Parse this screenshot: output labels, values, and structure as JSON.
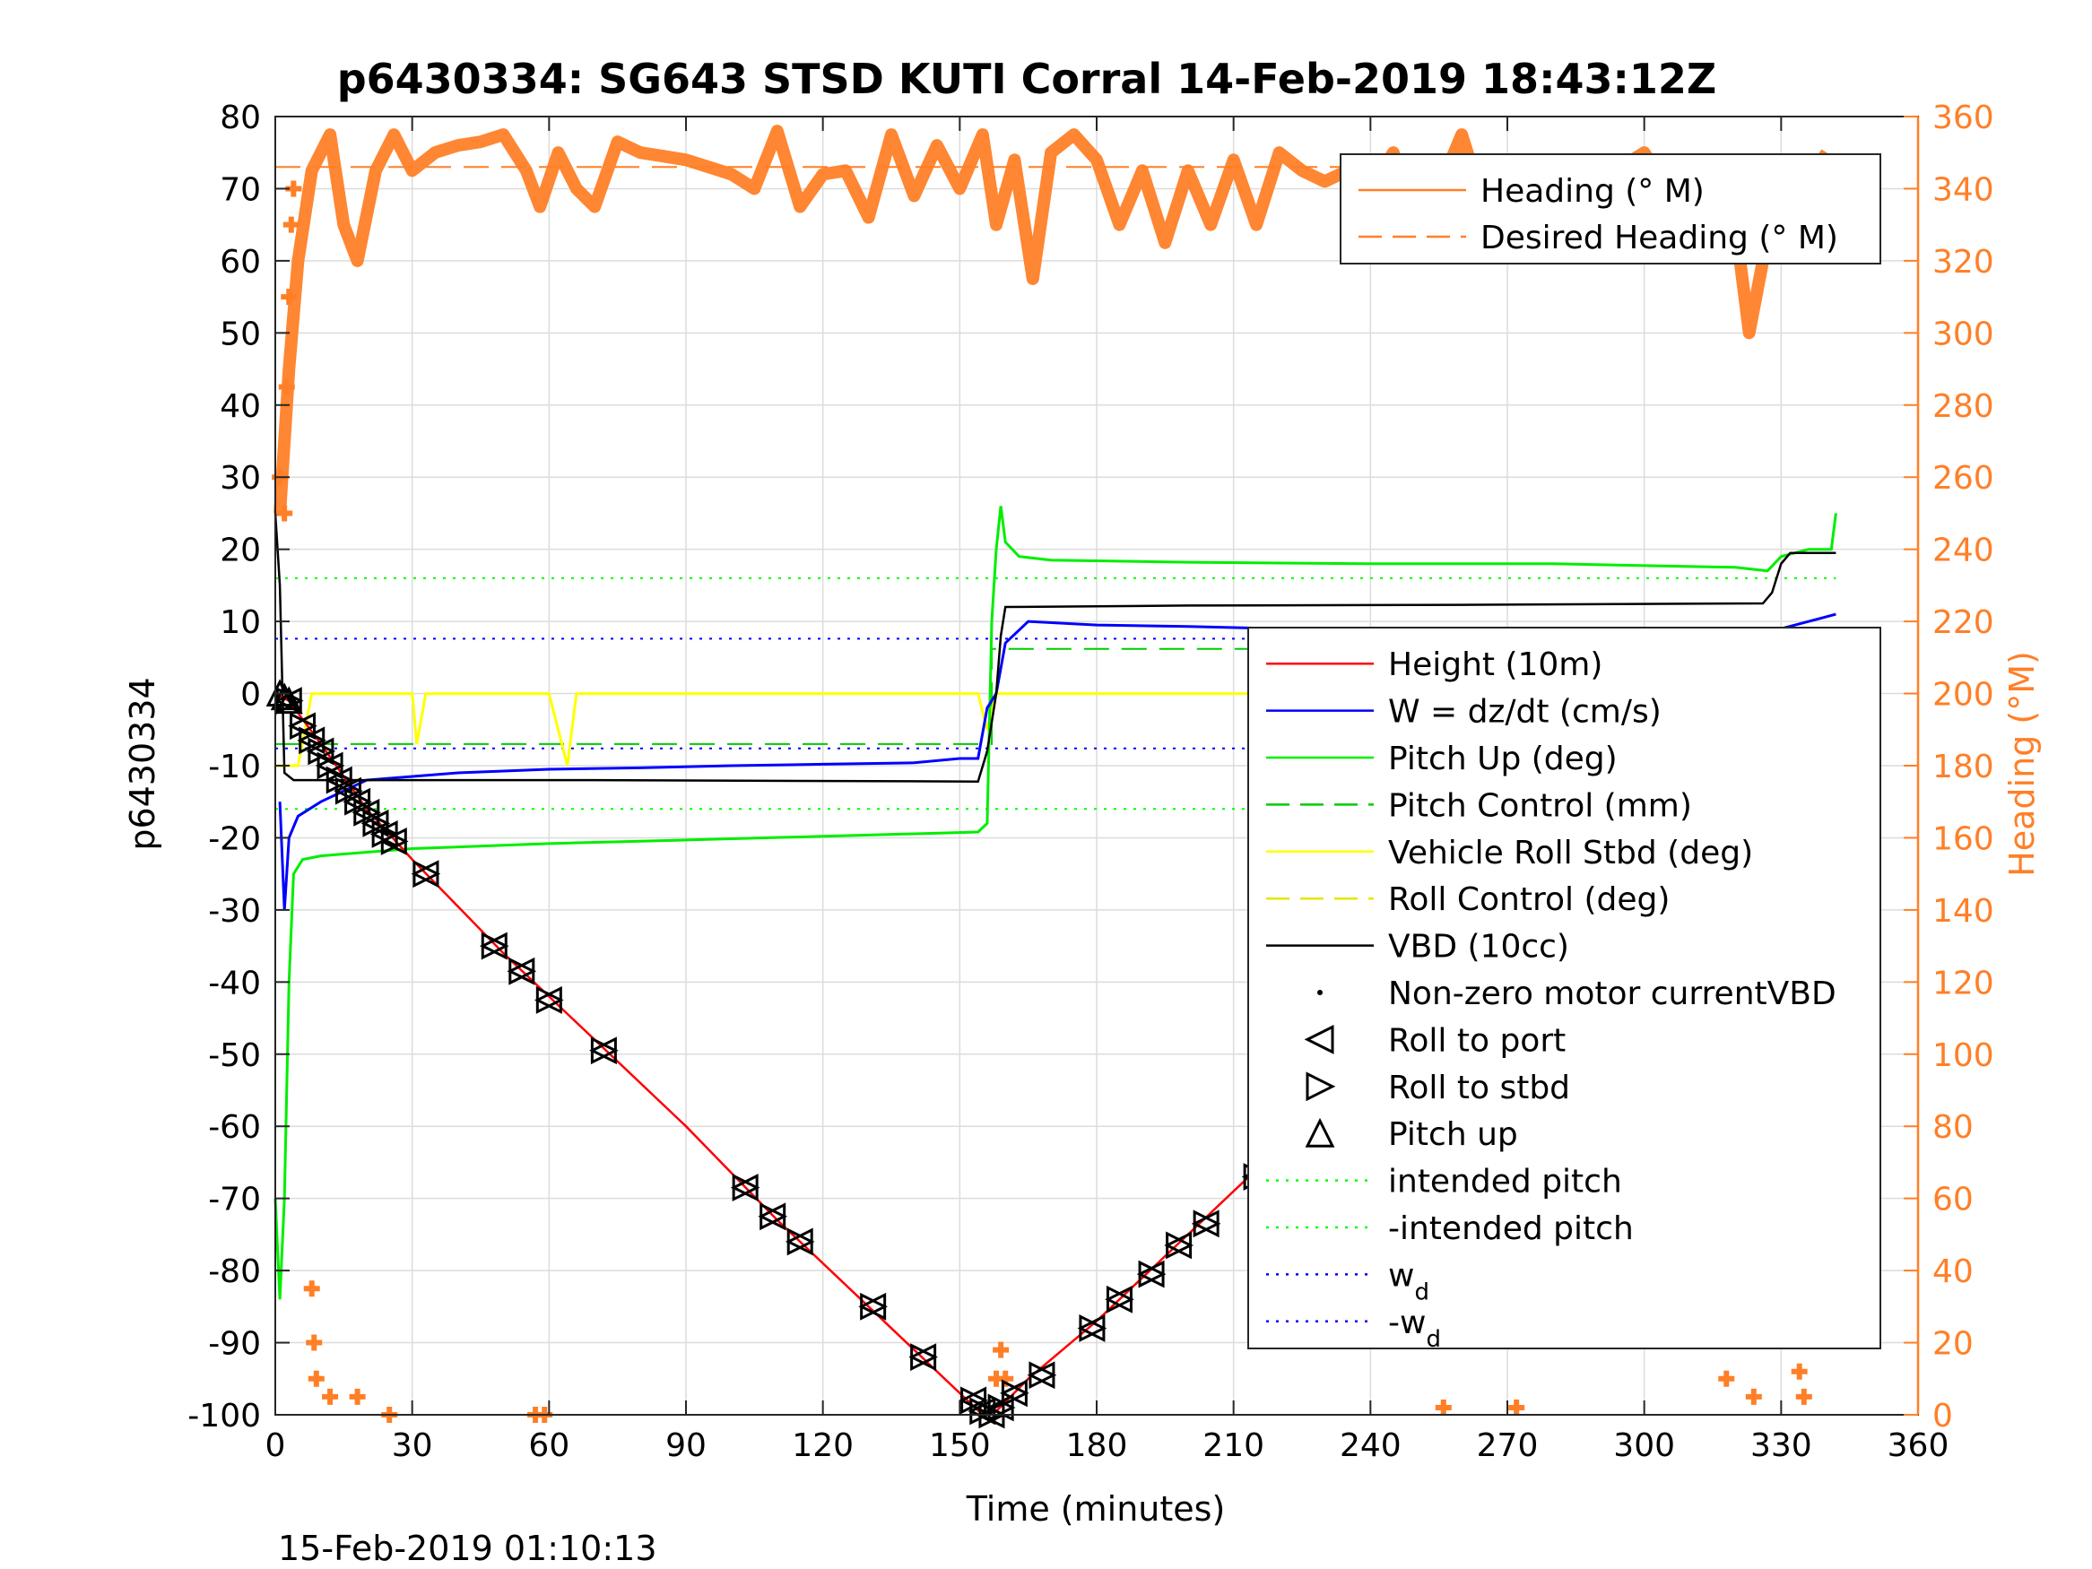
{
  "chart_data": {
    "type": "line",
    "title": "p6430334: SG643 STSD KUTI Corral 14-Feb-2019 18:43:12Z",
    "xlabel": "Time (minutes)",
    "ylabel": "p6430334",
    "y2label": "Heading (°M)",
    "footer": "15-Feb-2019 01:10:13",
    "xlim": [
      0,
      360
    ],
    "ylim": [
      -100,
      80
    ],
    "y2lim": [
      0,
      360
    ],
    "xticks": [
      0,
      30,
      60,
      90,
      120,
      150,
      180,
      210,
      240,
      270,
      300,
      330,
      360
    ],
    "yticks": [
      -100,
      -90,
      -80,
      -70,
      -60,
      -50,
      -40,
      -30,
      -20,
      -10,
      0,
      10,
      20,
      30,
      40,
      50,
      60,
      70,
      80
    ],
    "y2ticks": [
      0,
      20,
      40,
      60,
      80,
      100,
      120,
      140,
      160,
      180,
      200,
      220,
      240,
      260,
      280,
      300,
      320,
      340,
      360
    ],
    "grid": true,
    "colors": {
      "height": "#ff0000",
      "w": "#0000ff",
      "pitch": "#00ee00",
      "pitch_control": "#00cc00",
      "roll": "#ffff00",
      "roll_control": "#e6e600",
      "vbd": "#000000",
      "heading": "#ff7f27",
      "intended_pitch": "#00ff00",
      "wd": "#0000ff"
    },
    "legend_heading": [
      {
        "label": "Heading (° M)",
        "style": "solid",
        "color": "#ff7f27"
      },
      {
        "label": "Desired Heading (° M)",
        "style": "dashed",
        "color": "#ff7f27"
      }
    ],
    "legend_main": [
      {
        "label": "Height (10m)",
        "style": "solid",
        "color": "#ff0000"
      },
      {
        "label": "W = dz/dt (cm/s)",
        "style": "solid",
        "color": "#0000ff"
      },
      {
        "label": "Pitch Up (deg)",
        "style": "solid",
        "color": "#00ee00"
      },
      {
        "label": "Pitch Control (mm)",
        "style": "dashed",
        "color": "#00cc00"
      },
      {
        "label": "Vehicle Roll Stbd (deg)",
        "style": "solid",
        "color": "#ffff00"
      },
      {
        "label": "Roll Control (deg)",
        "style": "dashed",
        "color": "#e6e600"
      },
      {
        "label": "VBD (10cc)",
        "style": "solid",
        "color": "#000000"
      },
      {
        "label": "Non-zero motor currentVBD",
        "style": "dot",
        "color": "#000000"
      },
      {
        "label": "Roll to port",
        "style": "tri-left",
        "color": "#000000"
      },
      {
        "label": "Roll to stbd",
        "style": "tri-right",
        "color": "#000000"
      },
      {
        "label": "Pitch up",
        "style": "tri-up",
        "color": "#000000"
      },
      {
        "label": "intended pitch",
        "style": "dotted",
        "color": "#00ff00"
      },
      {
        "label": "-intended pitch",
        "style": "dotted",
        "color": "#00ff00"
      },
      {
        "label": "w",
        "sub": "d",
        "style": "dotted",
        "color": "#0000ff"
      },
      {
        "label": "-w",
        "sub": "d",
        "style": "dotted",
        "color": "#0000ff"
      }
    ],
    "reference_lines": {
      "intended_pitch": 16,
      "neg_intended_pitch": -16,
      "wd": 7.6,
      "neg_wd": -7.6,
      "pitch_control": [
        [
          0,
          -7
        ],
        [
          157,
          -7
        ],
        [
          157,
          6.2
        ],
        [
          342,
          6.2
        ]
      ],
      "desired_heading": 346
    },
    "series": {
      "height": [
        [
          0,
          0
        ],
        [
          3,
          -1
        ],
        [
          10,
          -7
        ],
        [
          20,
          -16
        ],
        [
          30,
          -23
        ],
        [
          50,
          -36
        ],
        [
          70,
          -48
        ],
        [
          90,
          -60
        ],
        [
          110,
          -73
        ],
        [
          130,
          -85
        ],
        [
          145,
          -94
        ],
        [
          155,
          -100
        ],
        [
          158,
          -99.5
        ],
        [
          165,
          -95
        ],
        [
          180,
          -87
        ],
        [
          200,
          -75
        ],
        [
          220,
          -63
        ],
        [
          240,
          -52
        ],
        [
          260,
          -42
        ],
        [
          280,
          -31
        ],
        [
          300,
          -20
        ],
        [
          320,
          -10
        ],
        [
          338,
          -2
        ]
      ],
      "vbd": [
        [
          0,
          25
        ],
        [
          1,
          15
        ],
        [
          2,
          -11
        ],
        [
          4,
          -12
        ],
        [
          70,
          -12
        ],
        [
          154,
          -12.2
        ],
        [
          156,
          -8
        ],
        [
          158,
          0
        ],
        [
          159,
          8
        ],
        [
          160,
          12
        ],
        [
          200,
          12.2
        ],
        [
          260,
          12.3
        ],
        [
          326,
          12.5
        ],
        [
          328,
          14
        ],
        [
          330,
          18
        ],
        [
          332,
          19.5
        ],
        [
          342,
          19.5
        ]
      ],
      "pitch": [
        [
          0,
          -70
        ],
        [
          1,
          -84
        ],
        [
          2,
          -70
        ],
        [
          3,
          -40
        ],
        [
          4,
          -25
        ],
        [
          6,
          -23
        ],
        [
          10,
          -22.5
        ],
        [
          30,
          -21.5
        ],
        [
          60,
          -20.8
        ],
        [
          90,
          -20.3
        ],
        [
          120,
          -19.8
        ],
        [
          154,
          -19.2
        ],
        [
          156,
          -18
        ],
        [
          157,
          10
        ],
        [
          158,
          20
        ],
        [
          159,
          26
        ],
        [
          160,
          21
        ],
        [
          163,
          19
        ],
        [
          170,
          18.5
        ],
        [
          200,
          18.2
        ],
        [
          240,
          18
        ],
        [
          280,
          18
        ],
        [
          320,
          17.5
        ],
        [
          327,
          17
        ],
        [
          330,
          19
        ],
        [
          336,
          20
        ],
        [
          341,
          20
        ],
        [
          342,
          25
        ]
      ],
      "w": [
        [
          1,
          -15
        ],
        [
          2,
          -30
        ],
        [
          3,
          -20
        ],
        [
          5,
          -17
        ],
        [
          10,
          -15
        ],
        [
          20,
          -12
        ],
        [
          40,
          -11
        ],
        [
          60,
          -10.5
        ],
        [
          80,
          -10.3
        ],
        [
          100,
          -10
        ],
        [
          120,
          -9.8
        ],
        [
          140,
          -9.6
        ],
        [
          150,
          -9
        ],
        [
          154,
          -9
        ],
        [
          156,
          -2
        ],
        [
          158,
          0
        ],
        [
          160,
          7
        ],
        [
          165,
          10
        ],
        [
          180,
          9.5
        ],
        [
          200,
          9.3
        ],
        [
          220,
          9
        ],
        [
          240,
          8.8
        ],
        [
          260,
          8.7
        ],
        [
          280,
          8.7
        ],
        [
          300,
          8.6
        ],
        [
          320,
          8.5
        ],
        [
          330,
          9
        ],
        [
          342,
          11
        ]
      ],
      "roll": [
        [
          0,
          -10
        ],
        [
          5,
          -10
        ],
        [
          8,
          0
        ],
        [
          20,
          0
        ],
        [
          30,
          0
        ],
        [
          31,
          -7
        ],
        [
          33,
          0
        ],
        [
          60,
          0
        ],
        [
          64,
          -10
        ],
        [
          66,
          0
        ],
        [
          90,
          0
        ],
        [
          110,
          0
        ],
        [
          130,
          0
        ],
        [
          154,
          0
        ],
        [
          156,
          -5
        ],
        [
          158,
          0
        ],
        [
          200,
          0
        ],
        [
          240,
          0
        ],
        [
          280,
          0
        ],
        [
          320,
          0
        ],
        [
          340,
          0
        ],
        [
          342,
          2
        ]
      ],
      "heading": [
        [
          1,
          250
        ],
        [
          3,
          290
        ],
        [
          5,
          320
        ],
        [
          8,
          345
        ],
        [
          12,
          355
        ],
        [
          15,
          330
        ],
        [
          18,
          320
        ],
        [
          22,
          345
        ],
        [
          26,
          355
        ],
        [
          30,
          345
        ],
        [
          35,
          350
        ],
        [
          40,
          352
        ],
        [
          45,
          353
        ],
        [
          50,
          355
        ],
        [
          55,
          345
        ],
        [
          58,
          335
        ],
        [
          62,
          350
        ],
        [
          66,
          340
        ],
        [
          70,
          335
        ],
        [
          75,
          353
        ],
        [
          80,
          350
        ],
        [
          85,
          349
        ],
        [
          90,
          348
        ],
        [
          95,
          346
        ],
        [
          100,
          344
        ],
        [
          105,
          340
        ],
        [
          110,
          356
        ],
        [
          115,
          335
        ],
        [
          120,
          344
        ],
        [
          125,
          345
        ],
        [
          130,
          332
        ],
        [
          135,
          355
        ],
        [
          140,
          338
        ],
        [
          145,
          352
        ],
        [
          150,
          340
        ],
        [
          155,
          355
        ],
        [
          158,
          330
        ],
        [
          162,
          348
        ],
        [
          166,
          315
        ],
        [
          170,
          350
        ],
        [
          175,
          355
        ],
        [
          180,
          348
        ],
        [
          185,
          330
        ],
        [
          190,
          345
        ],
        [
          195,
          325
        ],
        [
          200,
          345
        ],
        [
          205,
          330
        ],
        [
          210,
          348
        ],
        [
          215,
          330
        ],
        [
          220,
          350
        ],
        [
          225,
          345
        ],
        [
          230,
          342
        ],
        [
          235,
          345
        ],
        [
          240,
          340
        ],
        [
          245,
          350
        ],
        [
          250,
          330
        ],
        [
          255,
          340
        ],
        [
          260,
          355
        ],
        [
          265,
          335
        ],
        [
          270,
          345
        ],
        [
          275,
          340
        ],
        [
          280,
          348
        ],
        [
          285,
          344
        ],
        [
          290,
          340
        ],
        [
          295,
          346
        ],
        [
          300,
          350
        ],
        [
          305,
          340
        ],
        [
          310,
          330
        ],
        [
          315,
          340
        ],
        [
          320,
          330
        ],
        [
          323,
          300
        ],
        [
          326,
          320
        ],
        [
          330,
          345
        ],
        [
          335,
          340
        ],
        [
          340,
          350
        ]
      ],
      "heading_bursts": [
        [
          1,
          260
        ],
        [
          2,
          250
        ],
        [
          2.5,
          285
        ],
        [
          3,
          310
        ],
        [
          3.5,
          330
        ],
        [
          4,
          340
        ],
        [
          8,
          35
        ],
        [
          8.5,
          20
        ],
        [
          9,
          10
        ],
        [
          12,
          5
        ],
        [
          18,
          5
        ],
        [
          25,
          0
        ],
        [
          57,
          0
        ],
        [
          59,
          0
        ],
        [
          158,
          10
        ],
        [
          159,
          18
        ],
        [
          160,
          10
        ],
        [
          256,
          2
        ],
        [
          272,
          2
        ],
        [
          318,
          10
        ],
        [
          324,
          5
        ],
        [
          334,
          12
        ],
        [
          335,
          5
        ]
      ]
    },
    "markers": {
      "roll_to_port": [
        [
          3,
          -1
        ],
        [
          6,
          -4.5
        ],
        [
          8,
          -6.5
        ],
        [
          10,
          -8
        ],
        [
          12,
          -10
        ],
        [
          14,
          -12
        ],
        [
          16,
          -13.5
        ],
        [
          18,
          -15
        ],
        [
          20,
          -16.5
        ],
        [
          22,
          -18
        ],
        [
          24,
          -19.5
        ],
        [
          26,
          -20.5
        ],
        [
          33,
          -25
        ],
        [
          48,
          -35
        ],
        [
          54,
          -38.5
        ],
        [
          60,
          -42.5
        ],
        [
          72,
          -49.5
        ],
        [
          103,
          -68.5
        ],
        [
          109,
          -72.5
        ],
        [
          115,
          -76
        ],
        [
          131,
          -85
        ],
        [
          142,
          -92
        ],
        [
          153,
          -98
        ],
        [
          155,
          -99.5
        ],
        [
          157,
          -100
        ],
        [
          159,
          -99
        ],
        [
          162,
          -97
        ],
        [
          168,
          -94.5
        ],
        [
          179,
          -88
        ],
        [
          185,
          -84
        ],
        [
          192,
          -80.5
        ],
        [
          198,
          -76.5
        ],
        [
          204,
          -73.5
        ],
        [
          215,
          -67
        ],
        [
          221,
          -64
        ],
        [
          242,
          -52.5
        ],
        [
          258,
          -44
        ],
        [
          274,
          -35.5
        ],
        [
          280,
          -32.5
        ],
        [
          301,
          -21
        ],
        [
          311,
          -15.5
        ],
        [
          318,
          -12
        ],
        [
          322,
          -9.5
        ],
        [
          326,
          -8
        ],
        [
          328,
          -7
        ],
        [
          330,
          -6
        ],
        [
          332,
          -5
        ],
        [
          334,
          -4
        ],
        [
          336,
          -3
        ],
        [
          338,
          -2.5
        ]
      ],
      "roll_to_stbd": [
        [
          3,
          -1
        ],
        [
          6,
          -4.5
        ],
        [
          8,
          -6.5
        ],
        [
          10,
          -8
        ],
        [
          12,
          -10
        ],
        [
          14,
          -12
        ],
        [
          16,
          -13.5
        ],
        [
          18,
          -15
        ],
        [
          20,
          -16.5
        ],
        [
          22,
          -18
        ],
        [
          24,
          -19.5
        ],
        [
          26,
          -20.5
        ],
        [
          33,
          -25
        ],
        [
          48,
          -35
        ],
        [
          54,
          -38.5
        ],
        [
          60,
          -42.5
        ],
        [
          72,
          -49.5
        ],
        [
          103,
          -68.5
        ],
        [
          109,
          -72.5
        ],
        [
          115,
          -76
        ],
        [
          131,
          -85
        ],
        [
          142,
          -92
        ],
        [
          153,
          -98
        ],
        [
          155,
          -99.5
        ],
        [
          157,
          -100
        ],
        [
          159,
          -99
        ],
        [
          162,
          -97
        ],
        [
          168,
          -94.5
        ],
        [
          179,
          -88
        ],
        [
          185,
          -84
        ],
        [
          192,
          -80.5
        ],
        [
          198,
          -76.5
        ],
        [
          204,
          -73.5
        ],
        [
          215,
          -67
        ],
        [
          221,
          -64
        ],
        [
          242,
          -52.5
        ],
        [
          258,
          -44
        ],
        [
          274,
          -35.5
        ],
        [
          280,
          -32.5
        ],
        [
          301,
          -21
        ],
        [
          311,
          -15.5
        ],
        [
          318,
          -12
        ],
        [
          322,
          -9.5
        ],
        [
          326,
          -8
        ],
        [
          328,
          -7
        ],
        [
          330,
          -6
        ],
        [
          332,
          -5
        ],
        [
          334,
          -4
        ],
        [
          336,
          -3
        ],
        [
          338,
          -2.5
        ]
      ],
      "pitch_up": [
        [
          1,
          0
        ],
        [
          2,
          -0.5
        ],
        [
          3,
          -1
        ]
      ]
    }
  }
}
